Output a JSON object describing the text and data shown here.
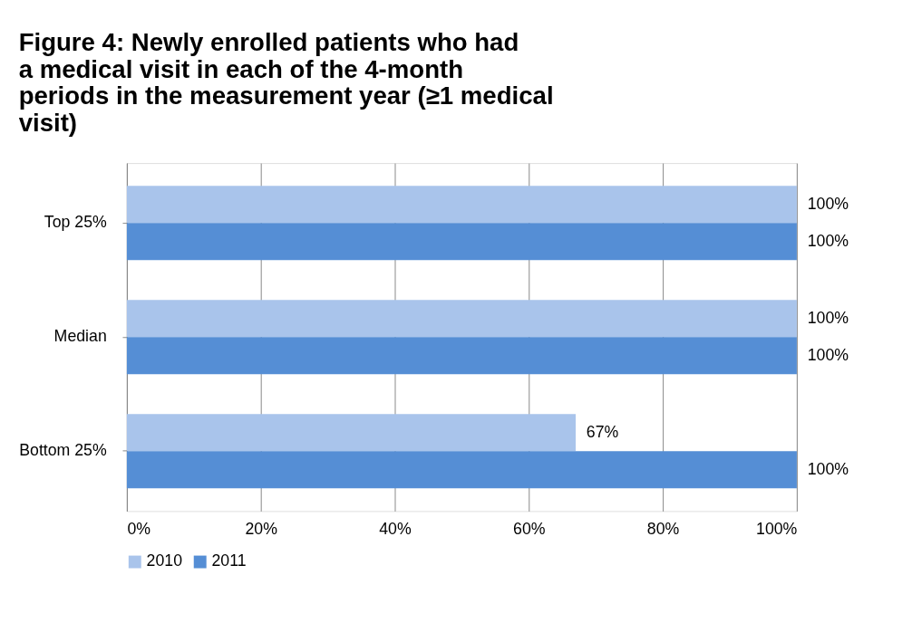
{
  "chart_data": {
    "type": "bar",
    "orientation": "horizontal",
    "title": "Figure 4:   Newly enrolled  patients who had a medical visit in each of the 4-month periods in the measurement year (≥1 medical visit)",
    "categories": [
      "Top 25%",
      "Median",
      "Bottom 25%"
    ],
    "series": [
      {
        "name": "2010",
        "color": "#a9c4eb",
        "values": [
          100,
          100,
          67
        ],
        "value_labels": [
          "100%",
          "100%",
          "67%"
        ]
      },
      {
        "name": "2011",
        "color": "#558ed5",
        "values": [
          100,
          100,
          100
        ],
        "value_labels": [
          "100%",
          "100%",
          "100%"
        ]
      }
    ],
    "xlim": [
      0,
      100
    ],
    "xticks": [
      {
        "value": 0,
        "label": "0%"
      },
      {
        "value": 20,
        "label": "20%"
      },
      {
        "value": 40,
        "label": "40%"
      },
      {
        "value": 60,
        "label": "60%"
      },
      {
        "value": 80,
        "label": "80%"
      },
      {
        "value": 100,
        "label": "100%"
      }
    ],
    "grid": "x",
    "legend": "bottom"
  }
}
